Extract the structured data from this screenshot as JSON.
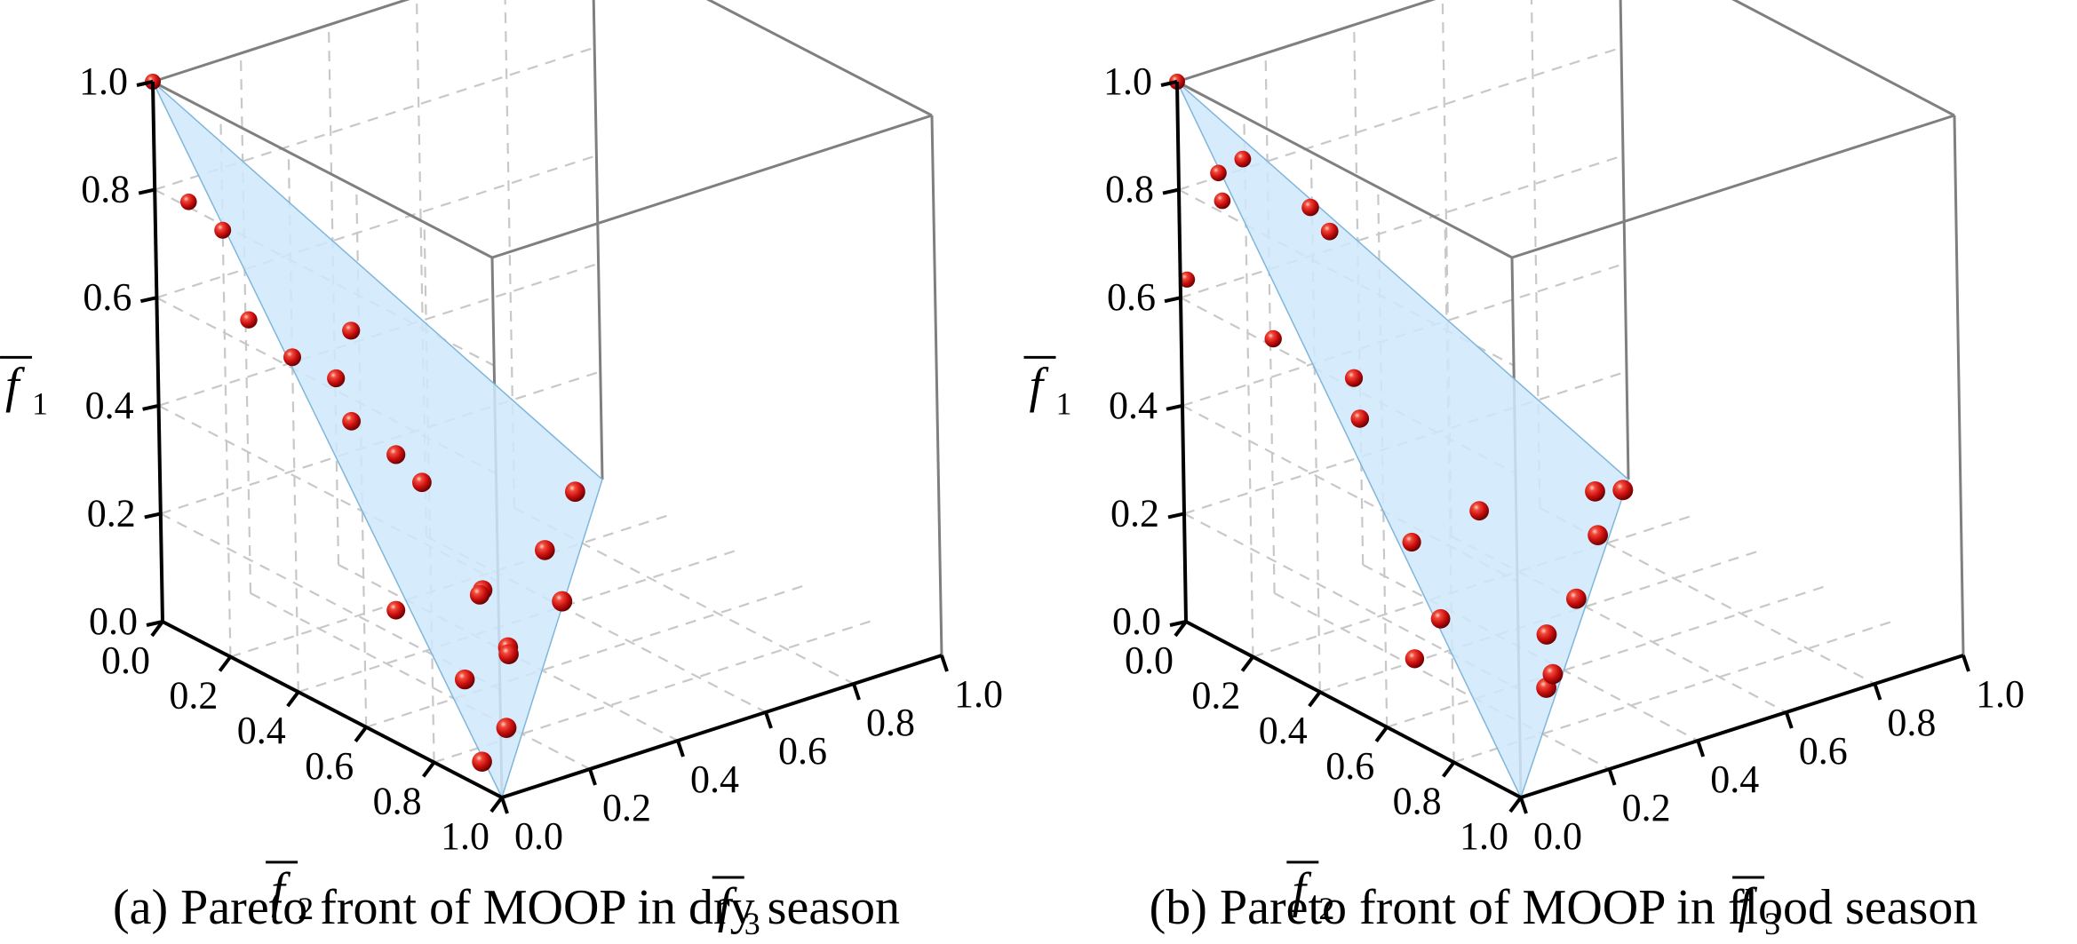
{
  "chart_data": [
    {
      "type": "scatter3d",
      "caption": "(a) Pareto front of MOOP in dry season",
      "axes": {
        "x": {
          "label_main": "f",
          "label_sub": "2",
          "range": [
            0,
            1
          ],
          "ticks": [
            "0.0",
            "0.2",
            "0.4",
            "0.6",
            "0.8",
            "1.0"
          ]
        },
        "y": {
          "label_main": "f",
          "label_sub": "3",
          "range": [
            0,
            1
          ],
          "ticks": [
            "0.0",
            "0.2",
            "0.4",
            "0.6",
            "0.8",
            "1.0"
          ]
        },
        "z": {
          "label_main": "f",
          "label_sub": "1",
          "range": [
            0,
            1
          ],
          "ticks": [
            "0.0",
            "0.2",
            "0.4",
            "0.6",
            "0.8",
            "1.0"
          ]
        }
      },
      "grid": true,
      "reference_plane": "x + y + z = 1",
      "points": [
        {
          "f2": 0.0,
          "f3": 0.0,
          "f1": 1.0
        },
        {
          "f2": 0.1,
          "f3": 0.0,
          "f1": 0.81
        },
        {
          "f2": 0.2,
          "f3": 0.0,
          "f1": 0.79
        },
        {
          "f2": 0.4,
          "f3": 0.0,
          "f1": 0.62
        },
        {
          "f2": 0.22,
          "f3": 0.04,
          "f1": 0.62
        },
        {
          "f2": 0.52,
          "f3": 0.04,
          "f1": 0.53
        },
        {
          "f2": 0.7,
          "f3": 0.06,
          "f1": 0.47
        },
        {
          "f2": 0.44,
          "f3": 0.2,
          "f1": 0.4
        },
        {
          "f2": 0.2,
          "f3": 0.25,
          "f1": 0.45
        },
        {
          "f2": 0.55,
          "f3": 0.3,
          "f1": 0.15
        },
        {
          "f2": 0.83,
          "f3": 0.05,
          "f1": 0.15
        },
        {
          "f2": 0.05,
          "f3": 0.4,
          "f1": 0.45
        },
        {
          "f2": 0.48,
          "f3": 0.36,
          "f1": 0.12
        },
        {
          "f2": 0.62,
          "f3": 0.31,
          "f1": 0.06
        },
        {
          "f2": 0.89,
          "f3": 0.04,
          "f1": 0.02
        },
        {
          "f2": 0.78,
          "f3": 0.18,
          "f1": 0.01
        },
        {
          "f2": 0.4,
          "f3": 0.6,
          "f1": 0.01
        },
        {
          "f2": 0.22,
          "f3": 0.7,
          "f1": 0.02
        },
        {
          "f2": 0.5,
          "f3": 0.4,
          "f1": 0.01
        },
        {
          "f2": 0.05,
          "f3": 0.9,
          "f1": 0.02
        },
        {
          "f2": 0.3,
          "f3": 0.3,
          "f1": 0.04
        }
      ]
    },
    {
      "type": "scatter3d",
      "caption": "(b) Pareto front of MOOP in flood season",
      "axes": {
        "x": {
          "label_main": "f",
          "label_sub": "2",
          "range": [
            0,
            1
          ],
          "ticks": [
            "0.0",
            "0.2",
            "0.4",
            "0.6",
            "0.8",
            "1.0"
          ]
        },
        "y": {
          "label_main": "f",
          "label_sub": "3",
          "range": [
            0,
            1
          ],
          "ticks": [
            "0.0",
            "0.2",
            "0.4",
            "0.6",
            "0.8",
            "1.0"
          ]
        },
        "z": {
          "label_main": "f",
          "label_sub": "1",
          "range": [
            0,
            1
          ],
          "ticks": [
            "0.0",
            "0.2",
            "0.4",
            "0.6",
            "0.8",
            "1.0"
          ]
        }
      },
      "grid": true,
      "reference_plane": "x + y + z = 1",
      "points": [
        {
          "f2": 0.0,
          "f3": 0.0,
          "f1": 1.0
        },
        {
          "f2": 0.05,
          "f3": 0.06,
          "f1": 0.78
        },
        {
          "f2": 0.12,
          "f3": 0.0,
          "f1": 0.87
        },
        {
          "f2": 0.06,
          "f3": 0.1,
          "f1": 0.85
        },
        {
          "f2": 0.02,
          "f3": 0.28,
          "f1": 0.7
        },
        {
          "f2": 0.05,
          "f3": 0.3,
          "f1": 0.66
        },
        {
          "f2": 0.02,
          "f3": 0.0,
          "f1": 0.64
        },
        {
          "f2": 0.25,
          "f3": 0.02,
          "f1": 0.6
        },
        {
          "f2": 0.4,
          "f3": 0.1,
          "f1": 0.48
        },
        {
          "f2": 0.25,
          "f3": 0.2,
          "f1": 0.48
        },
        {
          "f2": 0.55,
          "f3": 0.1,
          "f1": 0.3
        },
        {
          "f2": 0.42,
          "f3": 0.35,
          "f1": 0.25
        },
        {
          "f2": 0.7,
          "f3": 0.05,
          "f1": 0.22
        },
        {
          "f2": 0.68,
          "f3": 0.3,
          "f1": 0.02
        },
        {
          "f2": 0.55,
          "f3": 0.4,
          "f1": 0.05
        },
        {
          "f2": 0.4,
          "f3": 0.58,
          "f1": 0.02
        },
        {
          "f2": 0.62,
          "f3": 0.05,
          "f1": 0.12
        },
        {
          "f2": 0.1,
          "f3": 0.85,
          "f1": 0.05
        },
        {
          "f2": 0.2,
          "f3": 0.78,
          "f1": 0.02
        },
        {
          "f2": 0.05,
          "f3": 0.95,
          "f1": 0.01
        },
        {
          "f2": 0.62,
          "f3": 0.36,
          "f1": 0.01
        }
      ]
    }
  ],
  "colors": {
    "point": "#d40f0f",
    "point_highlight": "#ffb3a8",
    "plane_fill": "#cfe9fb",
    "plane_stroke": "#7fb6da",
    "box_line": "#7f7f7f",
    "axis_line": "#000000",
    "grid_line": "#c8c8c8"
  },
  "overbar_note_hidden": ""
}
